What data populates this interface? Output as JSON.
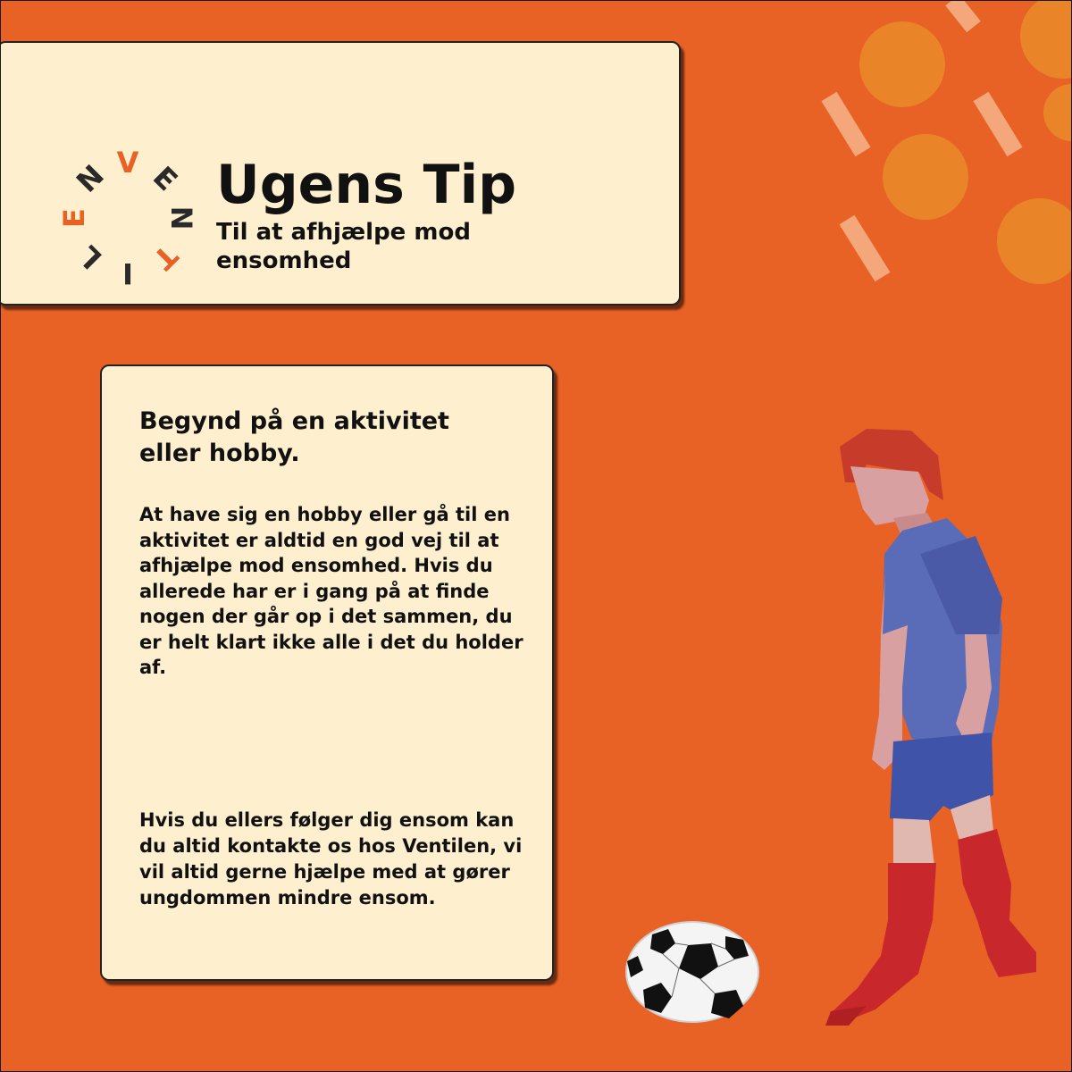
{
  "header": {
    "title": "Ugens Tip",
    "subtitle": "Til at afhjælpe mod ensomhed"
  },
  "logo": {
    "letters": [
      "V",
      "E",
      "N",
      "T",
      "I",
      "L",
      "E",
      "N"
    ],
    "colors": {
      "accent": "#e86125",
      "dark": "#2a2a2a"
    }
  },
  "content": {
    "heading": "Begynd på en aktivitet eller hobby.",
    "paragraph1": "At have sig en hobby eller gå til en aktivitet er aldtid en god vej til at afhjælpe mod ensomhed. Hvis du allerede har er i gang på at finde nogen der går op i det sammen, du er helt klart ikke alle i det du holder af.",
    "paragraph2": "Hvis du ellers følger dig ensom kan du altid kontakte os hos Ventilen, vi vil altid gerne hjælpe med at gører ungdommen mindre ensom."
  },
  "colors": {
    "background": "#e86125",
    "card": "#fef0cf",
    "text": "#111111"
  },
  "illustrations": [
    "soccer-player-illustration",
    "soccer-ball-icon"
  ]
}
